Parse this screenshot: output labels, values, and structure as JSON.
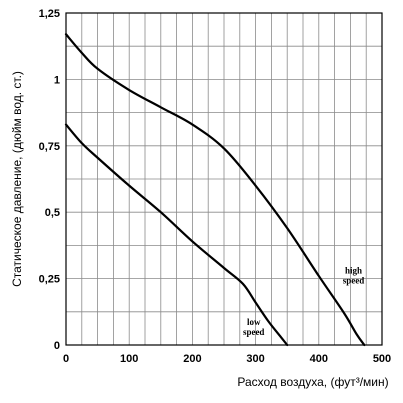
{
  "chart_data": {
    "type": "line",
    "xlabel": "Расход воздуха, (фут³/мин)",
    "ylabel": "Статическое давление, (дюйм вод. ст.)",
    "xlim": [
      0,
      500
    ],
    "ylim": [
      0,
      1.25
    ],
    "grid": true,
    "x_ticks": [
      0,
      100,
      200,
      300,
      400,
      500
    ],
    "x_tick_labels": [
      "0",
      "100",
      "200",
      "300",
      "400",
      "500"
    ],
    "y_ticks": [
      0,
      0.25,
      0.5,
      0.75,
      1,
      1.25
    ],
    "y_tick_labels": [
      "0",
      "0,25",
      "0,5",
      "0,75",
      "1",
      "1,25"
    ],
    "series": [
      {
        "name": "high speed",
        "label_lines": [
          "high",
          "speed"
        ],
        "x": [
          0,
          25,
          50,
          100,
          150,
          200,
          250,
          300,
          350,
          400,
          440,
          460,
          472
        ],
        "y": [
          1.17,
          1.1,
          1.04,
          0.96,
          0.895,
          0.83,
          0.74,
          0.6,
          0.44,
          0.26,
          0.12,
          0.04,
          0.0
        ]
      },
      {
        "name": "low speed",
        "label_lines": [
          "low",
          "speed"
        ],
        "x": [
          0,
          25,
          50,
          100,
          150,
          200,
          250,
          280,
          300,
          320,
          340,
          350
        ],
        "y": [
          0.83,
          0.76,
          0.705,
          0.6,
          0.5,
          0.39,
          0.29,
          0.23,
          0.16,
          0.09,
          0.03,
          0.0
        ]
      }
    ]
  }
}
